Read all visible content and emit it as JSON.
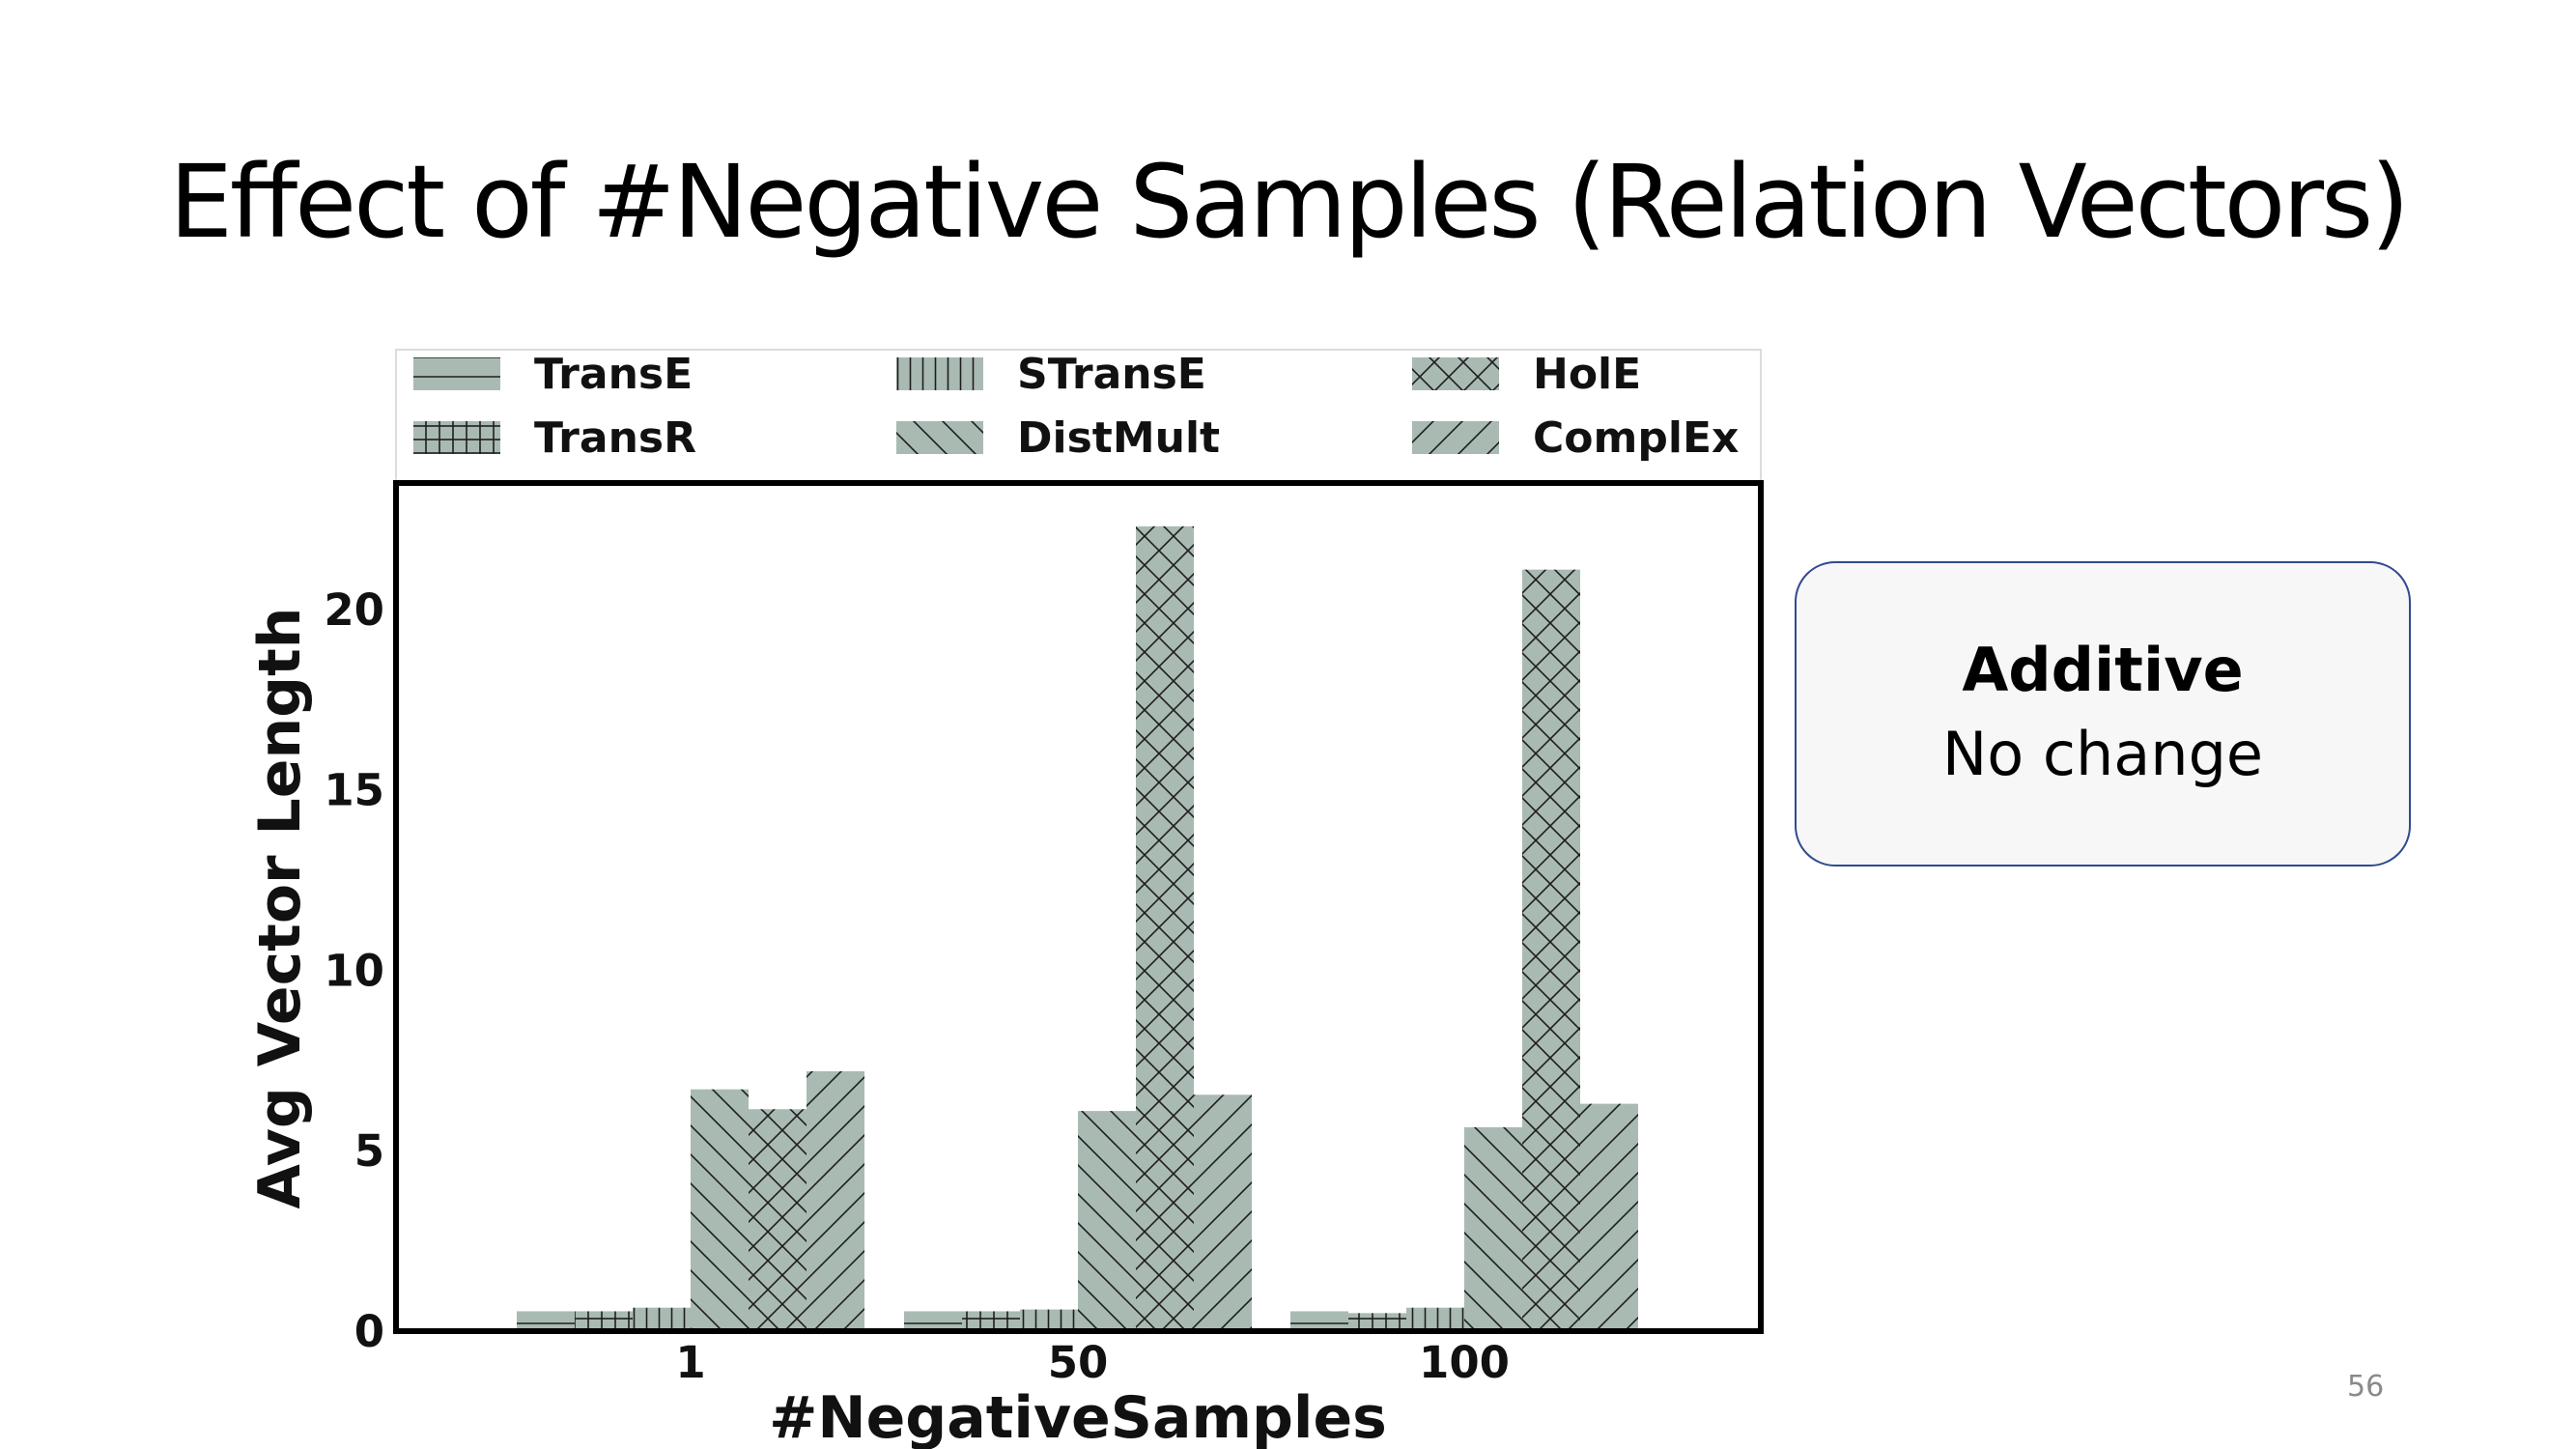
{
  "slide": {
    "title": "Effect of #Negative Samples (Relation Vectors)",
    "page_number": "56"
  },
  "callout": {
    "heading": "Additive",
    "text": "No change"
  },
  "colors": {
    "bar_fill": "#a9bab2",
    "hatch": "#1e1e1e",
    "callout_border": "#2f4a8f",
    "callout_bg": "#f7f7f7"
  },
  "chart_data": {
    "type": "bar",
    "title": "",
    "xlabel": "#NegativeSamples",
    "ylabel": "Avg Vector Length",
    "categories": [
      "1",
      "50",
      "100"
    ],
    "ylim": [
      0,
      23.5
    ],
    "yticks": [
      0,
      5,
      10,
      15,
      20
    ],
    "grid": false,
    "legend_position": "top",
    "legend_columns": 3,
    "series": [
      {
        "name": "TransE",
        "hatch": "horizontal",
        "values": [
          0.55,
          0.55,
          0.55
        ]
      },
      {
        "name": "TransR",
        "hatch": "grid",
        "values": [
          0.55,
          0.55,
          0.5
        ]
      },
      {
        "name": "STransE",
        "hatch": "vertical",
        "values": [
          0.65,
          0.6,
          0.65
        ]
      },
      {
        "name": "DistMult",
        "hatch": "backslash",
        "values": [
          6.7,
          6.1,
          5.65
        ]
      },
      {
        "name": "HolE",
        "hatch": "crosshatch",
        "values": [
          6.15,
          22.3,
          21.1
        ]
      },
      {
        "name": "ComplEx",
        "hatch": "slash",
        "values": [
          7.2,
          6.55,
          6.3
        ]
      }
    ]
  }
}
